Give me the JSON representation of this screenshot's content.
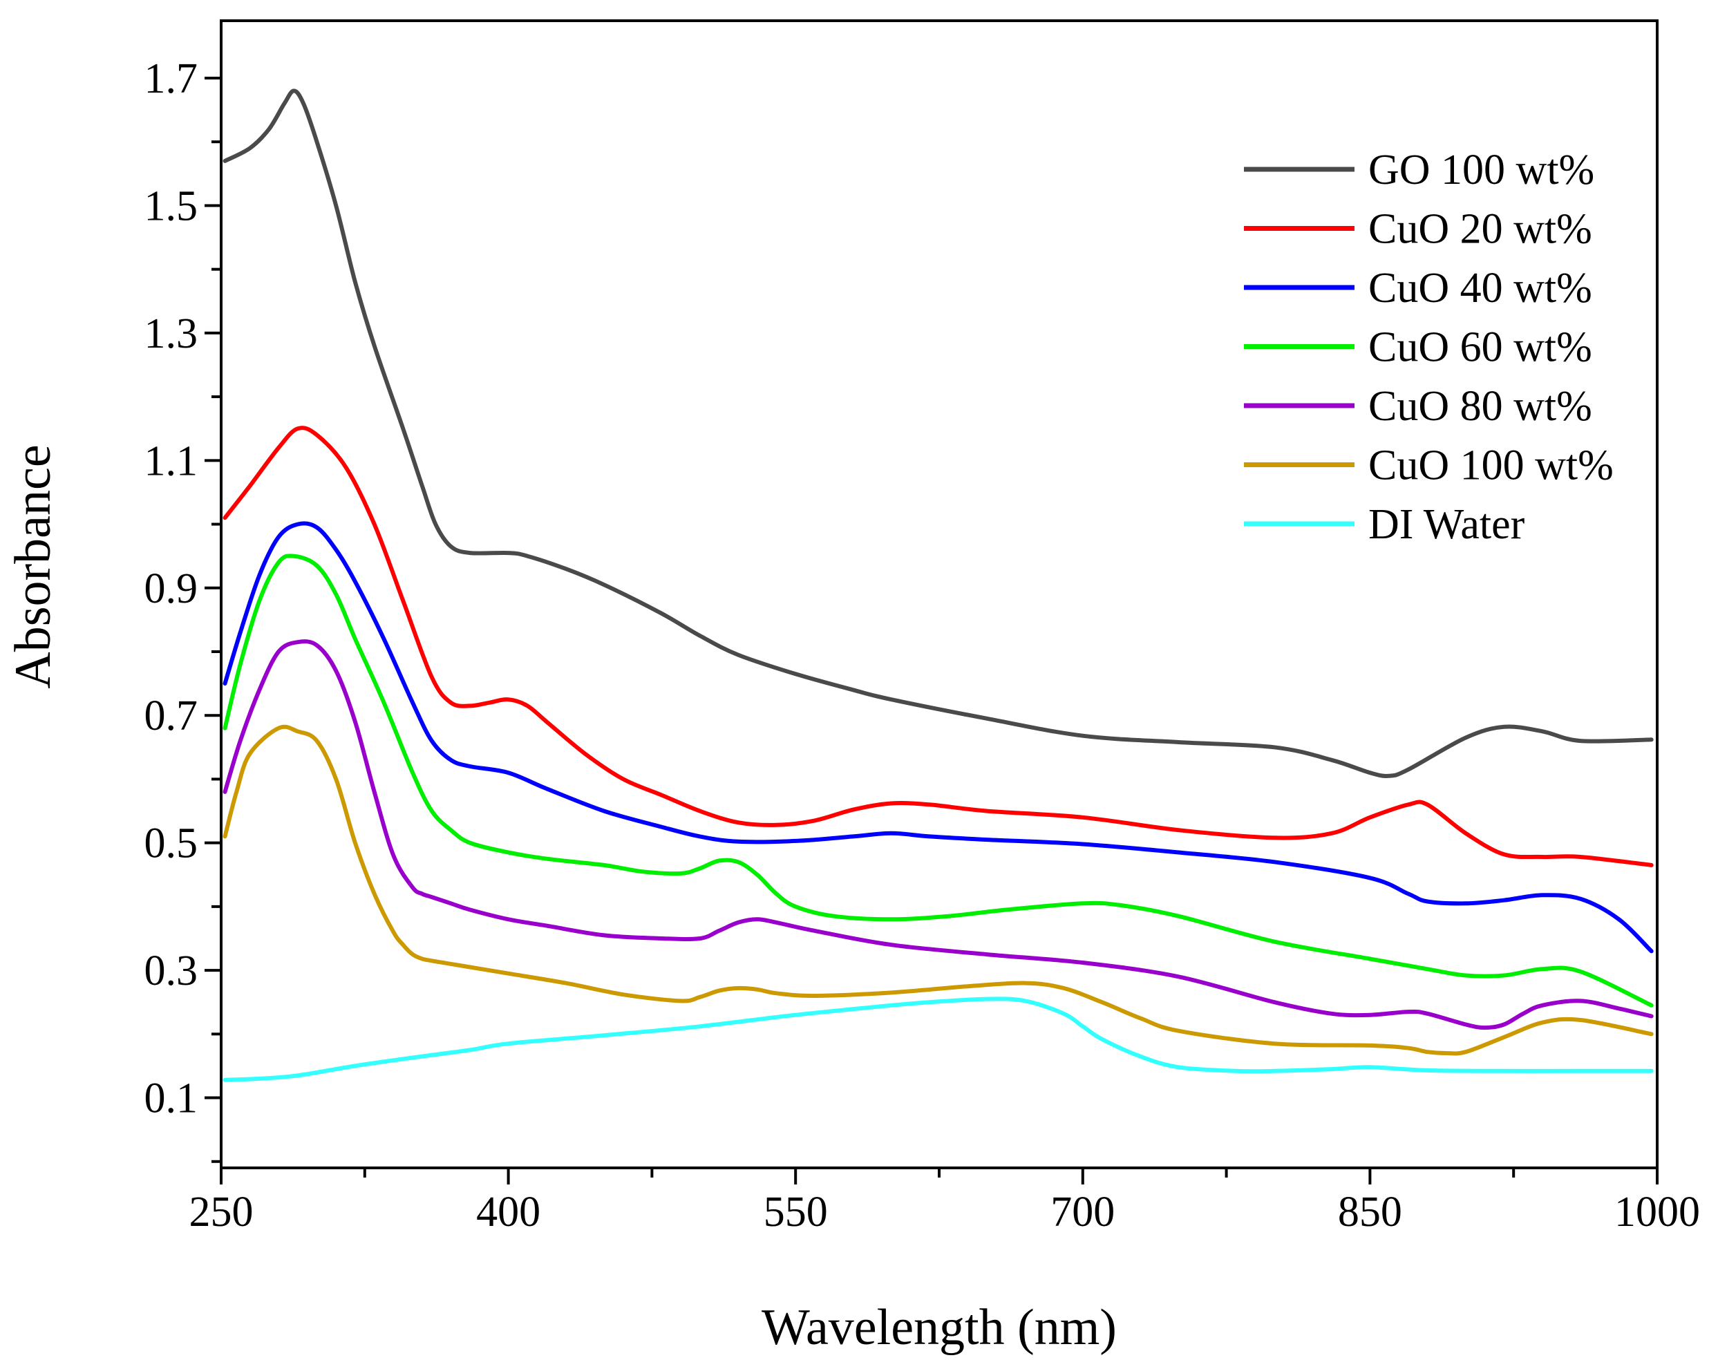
{
  "chart_data": {
    "type": "line",
    "title": "",
    "xlabel": "Wavelength (nm)",
    "ylabel": "Absorbance",
    "xlim": [
      250,
      1000
    ],
    "ylim": [
      -0.01,
      1.79
    ],
    "xticks": [
      250,
      400,
      550,
      700,
      850,
      1000
    ],
    "xtick_labels": [
      "250",
      "400",
      "550",
      "700",
      "850",
      "1000"
    ],
    "yticks": [
      0.1,
      0.3,
      0.5,
      0.7,
      0.9,
      1.1,
      1.3,
      1.5,
      1.7
    ],
    "ytick_labels": [
      "0.1",
      "0.3",
      "0.5",
      "0.7",
      "0.9",
      "1.1",
      "1.3",
      "1.5",
      "1.7"
    ],
    "grid": false,
    "legend_position": "top-right",
    "series": [
      {
        "name": "GO 100 wt%",
        "color": "#4a4a4a",
        "x": [
          252,
          265,
          275,
          283,
          288,
          293,
          300,
          310,
          320,
          330,
          345,
          355,
          362,
          370,
          380,
          400,
          410,
          430,
          450,
          480,
          500,
          520,
          550,
          580,
          600,
          650,
          700,
          750,
          800,
          830,
          850,
          860,
          870,
          900,
          920,
          940,
          960,
          997
        ],
        "y": [
          1.57,
          1.59,
          1.62,
          1.66,
          1.68,
          1.66,
          1.6,
          1.5,
          1.38,
          1.28,
          1.15,
          1.06,
          1.0,
          0.965,
          0.955,
          0.955,
          0.95,
          0.93,
          0.905,
          0.86,
          0.825,
          0.795,
          0.765,
          0.74,
          0.725,
          0.695,
          0.668,
          0.658,
          0.65,
          0.63,
          0.61,
          0.605,
          0.615,
          0.665,
          0.682,
          0.675,
          0.66,
          0.662
        ]
      },
      {
        "name": "CuO 20 wt%",
        "color": "#ff0000",
        "x": [
          252,
          265,
          280,
          290,
          300,
          315,
          330,
          345,
          360,
          370,
          380,
          390,
          400,
          410,
          420,
          440,
          460,
          480,
          500,
          520,
          540,
          560,
          580,
          600,
          620,
          650,
          700,
          750,
          800,
          830,
          850,
          870,
          880,
          900,
          920,
          940,
          960,
          997
        ],
        "y": [
          1.01,
          1.06,
          1.12,
          1.15,
          1.14,
          1.09,
          1.0,
          0.88,
          0.76,
          0.72,
          0.715,
          0.72,
          0.725,
          0.715,
          0.69,
          0.64,
          0.6,
          0.575,
          0.55,
          0.532,
          0.528,
          0.535,
          0.552,
          0.562,
          0.56,
          0.55,
          0.54,
          0.52,
          0.508,
          0.515,
          0.54,
          0.56,
          0.56,
          0.515,
          0.482,
          0.478,
          0.478,
          0.465
        ]
      },
      {
        "name": "CuO 40 wt%",
        "color": "#0000ff",
        "x": [
          252,
          260,
          270,
          280,
          290,
          300,
          310,
          320,
          335,
          350,
          360,
          370,
          380,
          400,
          420,
          450,
          480,
          500,
          520,
          550,
          580,
          600,
          620,
          650,
          700,
          750,
          800,
          850,
          870,
          880,
          900,
          920,
          940,
          960,
          980,
          997
        ],
        "y": [
          0.75,
          0.83,
          0.92,
          0.98,
          1.0,
          0.995,
          0.96,
          0.91,
          0.82,
          0.72,
          0.66,
          0.63,
          0.62,
          0.61,
          0.585,
          0.55,
          0.525,
          0.51,
          0.502,
          0.503,
          0.51,
          0.515,
          0.51,
          0.505,
          0.498,
          0.485,
          0.47,
          0.445,
          0.42,
          0.408,
          0.405,
          0.41,
          0.418,
          0.412,
          0.38,
          0.33
        ]
      },
      {
        "name": "CuO 60 wt%",
        "color": "#00ee00",
        "x": [
          252,
          260,
          270,
          280,
          288,
          300,
          310,
          320,
          335,
          350,
          360,
          370,
          380,
          400,
          420,
          450,
          470,
          490,
          500,
          510,
          520,
          530,
          540,
          550,
          570,
          600,
          630,
          660,
          700,
          720,
          750,
          800,
          850,
          880,
          900,
          920,
          940,
          960,
          997
        ],
        "y": [
          0.68,
          0.78,
          0.88,
          0.94,
          0.95,
          0.935,
          0.89,
          0.82,
          0.72,
          0.61,
          0.55,
          0.52,
          0.5,
          0.485,
          0.475,
          0.465,
          0.455,
          0.452,
          0.46,
          0.472,
          0.47,
          0.45,
          0.42,
          0.4,
          0.385,
          0.38,
          0.385,
          0.395,
          0.405,
          0.402,
          0.385,
          0.345,
          0.318,
          0.302,
          0.292,
          0.292,
          0.302,
          0.298,
          0.245
        ]
      },
      {
        "name": "CuO 80 wt%",
        "color": "#9900cc",
        "x": [
          252,
          260,
          270,
          280,
          290,
          300,
          310,
          320,
          330,
          340,
          350,
          355,
          360,
          370,
          380,
          400,
          420,
          450,
          480,
          500,
          510,
          520,
          530,
          540,
          560,
          600,
          650,
          700,
          750,
          800,
          830,
          850,
          870,
          880,
          900,
          910,
          920,
          930,
          940,
          960,
          980,
          997
        ],
        "y": [
          0.58,
          0.66,
          0.74,
          0.8,
          0.815,
          0.81,
          0.77,
          0.69,
          0.58,
          0.48,
          0.43,
          0.42,
          0.415,
          0.405,
          0.395,
          0.38,
          0.37,
          0.355,
          0.35,
          0.35,
          0.362,
          0.375,
          0.38,
          0.375,
          0.362,
          0.34,
          0.325,
          0.312,
          0.29,
          0.25,
          0.232,
          0.23,
          0.235,
          0.232,
          0.215,
          0.21,
          0.215,
          0.232,
          0.245,
          0.252,
          0.24,
          0.228
        ]
      },
      {
        "name": "CuO 100 wt%",
        "color": "#cc9900",
        "x": [
          252,
          258,
          265,
          280,
          290,
          300,
          310,
          320,
          330,
          340,
          345,
          350,
          355,
          360,
          370,
          380,
          400,
          430,
          460,
          490,
          500,
          510,
          520,
          530,
          540,
          560,
          600,
          640,
          670,
          690,
          710,
          730,
          750,
          800,
          850,
          870,
          880,
          890,
          900,
          920,
          940,
          960,
          997
        ],
        "y": [
          0.51,
          0.58,
          0.64,
          0.68,
          0.675,
          0.66,
          0.6,
          0.5,
          0.42,
          0.36,
          0.34,
          0.325,
          0.318,
          0.315,
          0.31,
          0.305,
          0.295,
          0.28,
          0.262,
          0.252,
          0.258,
          0.268,
          0.272,
          0.27,
          0.264,
          0.26,
          0.265,
          0.275,
          0.28,
          0.272,
          0.25,
          0.225,
          0.205,
          0.185,
          0.182,
          0.178,
          0.172,
          0.17,
          0.172,
          0.195,
          0.218,
          0.222,
          0.2
        ]
      },
      {
        "name": "DI Water",
        "color": "#33ffff",
        "x": [
          252,
          270,
          290,
          320,
          350,
          380,
          400,
          450,
          500,
          550,
          600,
          620,
          650,
          670,
          690,
          700,
          710,
          730,
          750,
          780,
          800,
          830,
          850,
          880,
          920,
          960,
          997
        ],
        "y": [
          0.128,
          0.13,
          0.135,
          0.15,
          0.163,
          0.175,
          0.185,
          0.198,
          0.212,
          0.23,
          0.245,
          0.25,
          0.255,
          0.252,
          0.232,
          0.212,
          0.192,
          0.165,
          0.148,
          0.142,
          0.142,
          0.145,
          0.148,
          0.143,
          0.142,
          0.142,
          0.142
        ]
      }
    ]
  }
}
